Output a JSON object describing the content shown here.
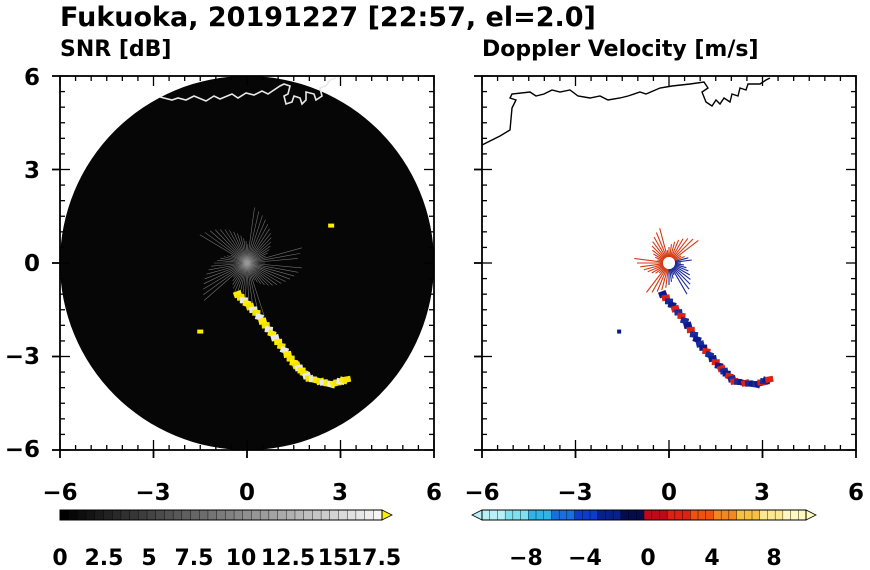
{
  "chart_data": [
    {
      "type": "heatmap",
      "title": "Fukuoka, 20191227 [22:57, el=2.0]",
      "subtitle": "SNR [dB]",
      "xlim": [
        -6,
        6
      ],
      "ylim": [
        -6,
        6
      ],
      "x_ticks": [
        "−6",
        "−3",
        "0",
        "3",
        "6"
      ],
      "y_ticks": [
        "6",
        "3",
        "0",
        "−3",
        "−6"
      ],
      "colorbar": {
        "range": [
          0,
          18.5
        ],
        "labels": [
          "0",
          "2.5",
          "5",
          "7.5",
          "10",
          "12.5",
          "15",
          "17.5"
        ],
        "colors": {
          "low": "#000000",
          "high": "#f0f0f0",
          "over": "#ffee00"
        }
      },
      "echo_track": [
        [
          -0.3,
          -1.0
        ],
        [
          0.3,
          -1.6
        ],
        [
          0.9,
          -2.4
        ],
        [
          1.5,
          -3.2
        ],
        [
          2.0,
          -3.7
        ],
        [
          2.7,
          -3.9
        ],
        [
          3.3,
          -3.7
        ]
      ],
      "scattered_echoes": [
        [
          -1.5,
          -2.2
        ],
        [
          2.7,
          1.2
        ]
      ]
    },
    {
      "type": "heatmap",
      "subtitle": "Doppler Velocity [m/s]",
      "xlim": [
        -6,
        6
      ],
      "ylim": [
        -6,
        6
      ],
      "x_ticks": [
        "−6",
        "−3",
        "0",
        "3",
        "6"
      ],
      "colorbar": {
        "range": [
          -10,
          10
        ],
        "labels": [
          "−8",
          "−4",
          "0",
          "4",
          "8"
        ],
        "colors": {
          "negative": "#0b1a8c",
          "positive": "#e02010",
          "light_neg": "#b8f0f8",
          "light_pos": "#fff9c0"
        }
      },
      "echo_track": [
        [
          -0.2,
          -1.0
        ],
        [
          0.4,
          -1.7
        ],
        [
          1.0,
          -2.6
        ],
        [
          1.6,
          -3.3
        ],
        [
          2.1,
          -3.8
        ],
        [
          2.8,
          -3.9
        ],
        [
          3.3,
          -3.7
        ]
      ],
      "scattered_echoes": [
        [
          -1.6,
          -2.2
        ]
      ]
    }
  ]
}
